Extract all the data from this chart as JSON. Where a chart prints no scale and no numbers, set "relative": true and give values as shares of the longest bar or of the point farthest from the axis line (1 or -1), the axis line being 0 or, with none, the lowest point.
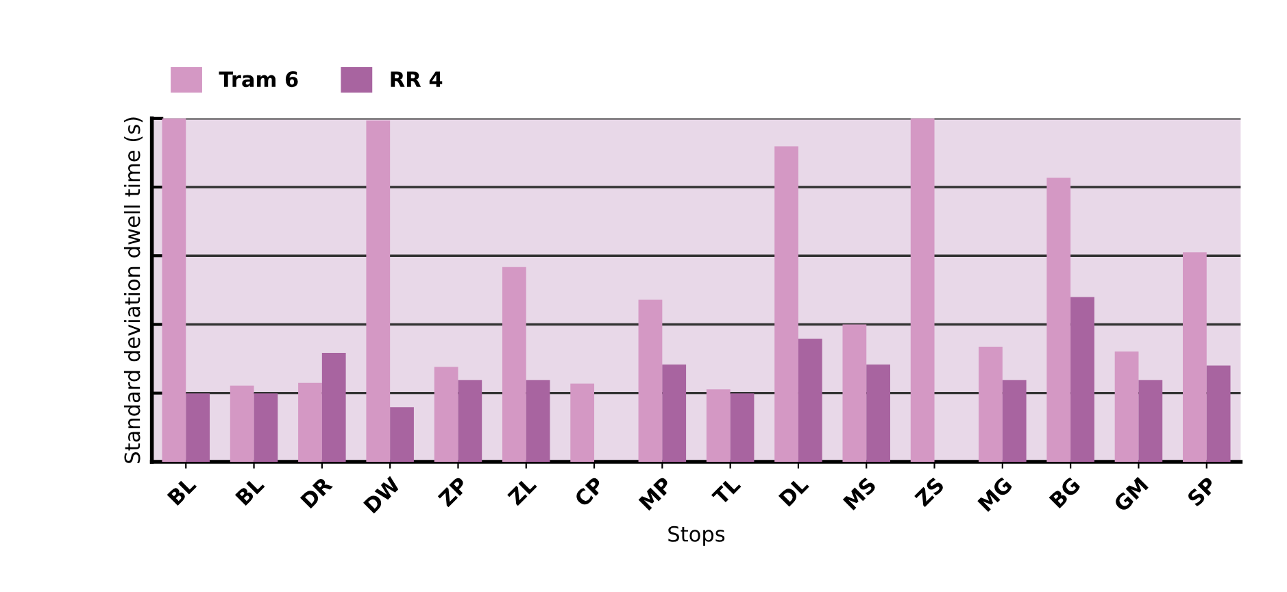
{
  "chart_data": {
    "type": "bar",
    "relative": true,
    "xlabel": "Stops",
    "ylabel": "Standard deviation dwell time (s)",
    "categories": [
      "BL",
      "BL",
      "DR",
      "DW",
      "ZP",
      "ZL",
      "CP",
      "MP",
      "TL",
      "DL",
      "MS",
      "ZS",
      "MG",
      "BG",
      "GM",
      "SP"
    ],
    "series": [
      {
        "name": "Tram 6",
        "color": "#d498c4",
        "values": [
          1.0,
          0.222,
          0.23,
          0.994,
          0.276,
          0.567,
          0.228,
          0.472,
          0.211,
          0.919,
          0.4,
          1.0,
          0.335,
          0.827,
          0.321,
          0.61
        ]
      },
      {
        "name": "RR 4",
        "color": "#a864a0",
        "values": [
          0.199,
          0.199,
          0.317,
          0.159,
          0.238,
          0.238,
          null,
          0.283,
          0.199,
          0.358,
          0.283,
          null,
          0.238,
          0.48,
          0.238,
          0.28
        ]
      }
    ],
    "grid": "y",
    "legend": "top left"
  }
}
